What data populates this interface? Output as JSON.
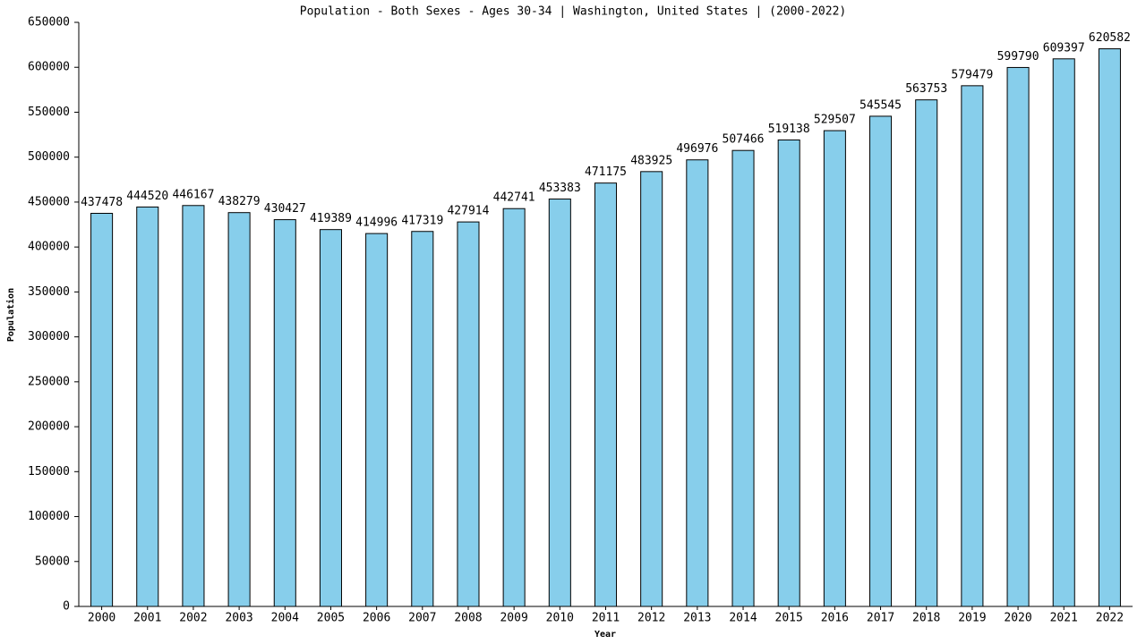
{
  "chart_data": {
    "type": "bar",
    "title": "Population - Both Sexes - Ages 30-34 | Washington, United States |  (2000-2022)",
    "x_label": "Year",
    "y_label": "Population",
    "categories": [
      "2000",
      "2001",
      "2002",
      "2003",
      "2004",
      "2005",
      "2006",
      "2007",
      "2008",
      "2009",
      "2010",
      "2011",
      "2012",
      "2013",
      "2014",
      "2015",
      "2016",
      "2017",
      "2018",
      "2019",
      "2020",
      "2021",
      "2022"
    ],
    "values": [
      437478,
      444520,
      446167,
      438279,
      430427,
      419389,
      414996,
      417319,
      427914,
      442741,
      453383,
      471175,
      483925,
      496976,
      507466,
      519138,
      529507,
      545545,
      563753,
      579479,
      599790,
      609397,
      620582
    ],
    "color": "#87ceeb",
    "ylim": [
      0,
      650000
    ],
    "yticks": [
      0,
      50000,
      100000,
      150000,
      200000,
      250000,
      300000,
      350000,
      400000,
      450000,
      500000,
      550000,
      600000,
      650000
    ]
  }
}
